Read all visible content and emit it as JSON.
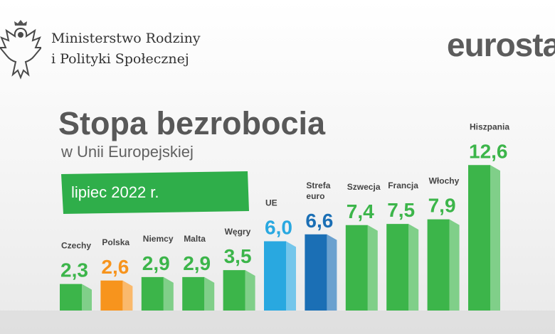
{
  "header": {
    "ministry_line1": "Ministerstwo Rodziny",
    "ministry_line2": "i Polityki Społecznej",
    "logo_text": "eurostat"
  },
  "colors": {
    "green": "#3cb54a",
    "orange": "#f7941d",
    "light_blue": "#29a8e0",
    "dark_blue": "#1b6fb5",
    "label_green": "#3cb54a",
    "banner_green": "#2fae4a"
  },
  "chart_data": {
    "type": "bar",
    "title": "Stopa bezrobocia",
    "subtitle": "w Unii Europejskiej",
    "period_label": "lipiec 2022 r.",
    "categories": [
      "Czechy",
      "Polska",
      "Niemcy",
      "Malta",
      "Węgry",
      "UE",
      "Strefa euro",
      "Szwecja",
      "Francja",
      "Włochy",
      "Hiszpania"
    ],
    "category_lines": [
      [
        "Czechy"
      ],
      [
        "Polska"
      ],
      [
        "Niemcy"
      ],
      [
        "Malta"
      ],
      [
        "Węgry"
      ],
      [
        "UE"
      ],
      [
        "Strefa",
        "euro"
      ],
      [
        "Szwecja"
      ],
      [
        "Francja"
      ],
      [
        "Włochy"
      ],
      [
        "Hiszpania"
      ]
    ],
    "values": [
      2.3,
      2.6,
      2.9,
      2.9,
      3.5,
      6.0,
      6.6,
      7.4,
      7.5,
      7.9,
      12.6
    ],
    "value_labels": [
      "2,3",
      "2,6",
      "2,9",
      "2,9",
      "3,5",
      "6,0",
      "6,6",
      "7,4",
      "7,5",
      "7,9",
      "12,6"
    ],
    "bar_colors": [
      "green",
      "orange",
      "green",
      "green",
      "green",
      "light_blue",
      "dark_blue",
      "green",
      "green",
      "green",
      "green"
    ],
    "ylim": [
      0,
      14
    ],
    "grid": false,
    "legend": "none"
  }
}
